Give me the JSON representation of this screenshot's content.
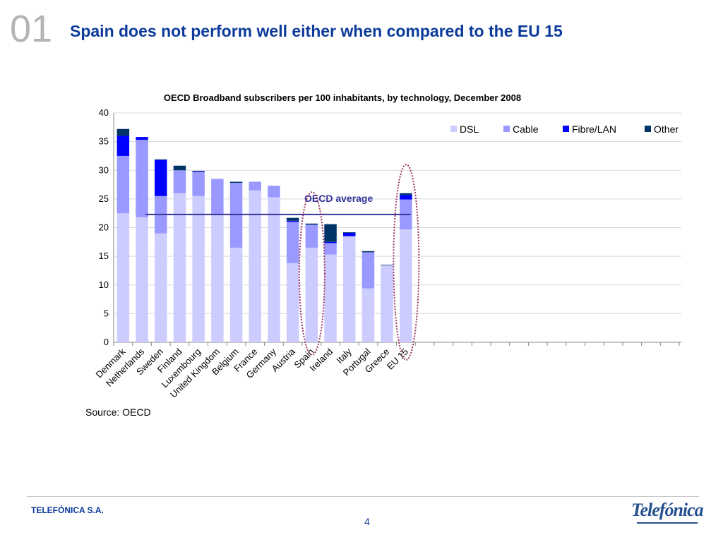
{
  "slide": {
    "number": "01",
    "title": "Spain does not perform well either when compared to the EU 15",
    "source": "Source: OECD",
    "company": "TELEFÓNICA S.A.",
    "page": "4",
    "logo_text": "Telefónica"
  },
  "chart_data": {
    "type": "bar",
    "stacked": true,
    "title": "OECD Broadband subscribers per 100 inhabitants, by technology, December 2008",
    "xlabel": "",
    "ylabel": "",
    "ylim": [
      0,
      40
    ],
    "yticks": [
      0,
      5,
      10,
      15,
      20,
      25,
      30,
      35,
      40
    ],
    "grid": true,
    "legend_position": "top-right",
    "categories": [
      "Denmark",
      "Netherlands",
      "Sweden",
      "Finland",
      "Luxembourg",
      "United Kingdom",
      "Belgium",
      "France",
      "Germany",
      "Austria",
      "Spain",
      "Ireland",
      "Italy",
      "Portugal",
      "Greece",
      "EU 15"
    ],
    "series": [
      {
        "name": "DSL",
        "color": "#ccccff",
        "values": [
          22.5,
          21.8,
          19.0,
          26.0,
          25.5,
          22.2,
          16.5,
          26.5,
          25.3,
          13.8,
          16.5,
          15.3,
          18.5,
          9.4,
          13.4,
          19.7
        ]
      },
      {
        "name": "Cable",
        "color": "#9999ff",
        "values": [
          10.0,
          13.5,
          6.5,
          4.0,
          4.2,
          6.3,
          11.3,
          1.5,
          2.0,
          7.2,
          4.0,
          2.0,
          0.0,
          6.3,
          0.0,
          5.2
        ]
      },
      {
        "name": "Fibre/LAN",
        "color": "#0000ff",
        "values": [
          3.5,
          0.5,
          6.3,
          0.0,
          0.1,
          0.0,
          0.0,
          0.0,
          0.0,
          0.2,
          0.0,
          0.2,
          0.6,
          0.0,
          0.0,
          0.8
        ]
      },
      {
        "name": "Other",
        "color": "#003366",
        "values": [
          1.2,
          0.0,
          0.1,
          0.8,
          0.1,
          0.0,
          0.2,
          0.0,
          0.0,
          0.5,
          0.2,
          3.1,
          0.1,
          0.2,
          0.1,
          0.3
        ]
      }
    ],
    "reference_line": {
      "label": "OECD average",
      "value": 22.3,
      "color": "#333399"
    },
    "highlighted_categories": [
      "Spain",
      "EU 15"
    ]
  }
}
